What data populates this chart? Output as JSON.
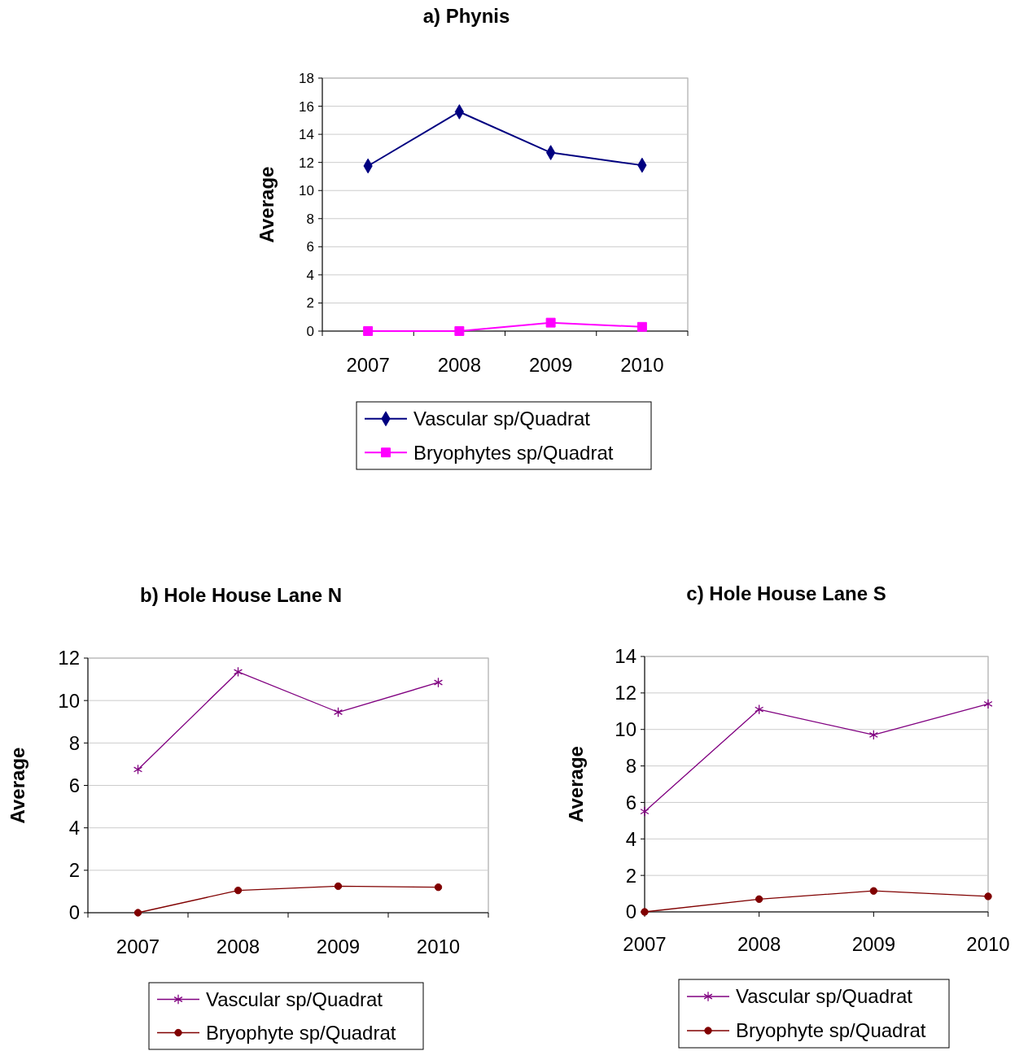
{
  "chart_data": [
    {
      "type": "line",
      "title": "a) Phynis",
      "ylabel": "Average",
      "categories": [
        "2007",
        "2008",
        "2009",
        "2010"
      ],
      "ylim": [
        0,
        18
      ],
      "yticks": [
        0,
        2,
        4,
        6,
        8,
        10,
        12,
        14,
        16,
        18
      ],
      "grid": "y",
      "legend": "bottom",
      "series": [
        {
          "name": "Vascular sp/Quadrat",
          "color": "#000080",
          "marker": "diamond",
          "values": [
            11.75,
            15.6,
            12.7,
            11.8
          ]
        },
        {
          "name": "Bryophytes sp/Quadrat",
          "color": "#ff00ff",
          "marker": "square",
          "values": [
            0,
            0,
            0.6,
            0.3
          ]
        }
      ]
    },
    {
      "type": "line",
      "title": "b) Hole House Lane N",
      "ylabel": "Average",
      "categories": [
        "2007",
        "2008",
        "2009",
        "2010"
      ],
      "ylim": [
        0,
        12
      ],
      "yticks": [
        0,
        2,
        4,
        6,
        8,
        10,
        12
      ],
      "grid": "y",
      "legend": "bottom",
      "series": [
        {
          "name": "Vascular sp/Quadrat",
          "color": "#800080",
          "marker": "cross",
          "values": [
            6.75,
            11.35,
            9.45,
            10.85
          ]
        },
        {
          "name": "Bryophyte sp/Quadrat",
          "color": "#800000",
          "marker": "circle",
          "values": [
            0,
            1.05,
            1.25,
            1.2
          ]
        }
      ]
    },
    {
      "type": "line",
      "title": "c) Hole House Lane S",
      "ylabel": "Average",
      "x": [
        2007,
        2008,
        2009,
        2010
      ],
      "xlim": [
        2007,
        2010
      ],
      "xticks": [
        2007,
        2008,
        2009,
        2010
      ],
      "ylim": [
        0,
        14
      ],
      "yticks": [
        0,
        2,
        4,
        6,
        8,
        10,
        12,
        14
      ],
      "grid": "y",
      "legend": "bottom",
      "series": [
        {
          "name": "Vascular sp/Quadrat",
          "color": "#800080",
          "marker": "cross",
          "values": [
            5.5,
            11.1,
            9.7,
            11.4
          ]
        },
        {
          "name": "Bryophyte sp/Quadrat",
          "color": "#800000",
          "marker": "circle",
          "values": [
            0,
            0.7,
            1.15,
            0.85
          ]
        }
      ]
    }
  ]
}
